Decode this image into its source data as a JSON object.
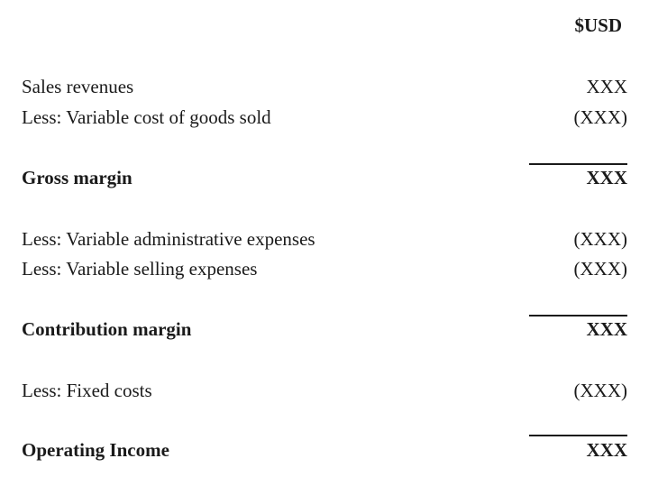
{
  "currency_header": "$USD",
  "rows": [
    {
      "label": "Sales revenues",
      "amount": "XXX"
    },
    {
      "label": "Less: Variable cost of goods sold",
      "amount": "(XXX)"
    },
    {
      "label": "Gross margin",
      "amount": "XXX"
    },
    {
      "label": "Less: Variable administrative expenses",
      "amount": "(XXX)"
    },
    {
      "label": "Less: Variable selling expenses",
      "amount": "(XXX)"
    },
    {
      "label": "Contribution margin",
      "amount": "XXX"
    },
    {
      "label": "Less: Fixed costs",
      "amount": "(XXX)"
    },
    {
      "label": "Operating Income",
      "amount": "XXX"
    }
  ]
}
